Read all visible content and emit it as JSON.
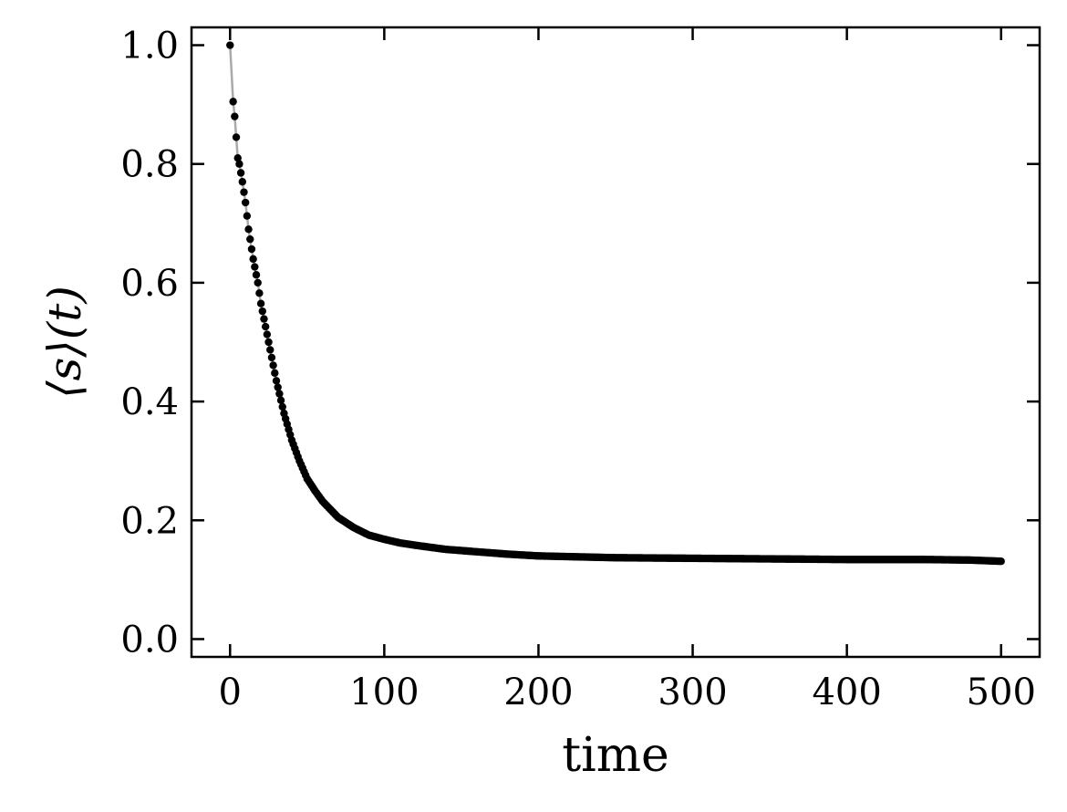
{
  "chart_data": {
    "type": "scatter",
    "xlabel": "time",
    "ylabel": "⟨s⟩(t)",
    "xlim": [
      -25,
      525
    ],
    "ylim": [
      -0.03,
      1.03
    ],
    "x_ticks": [
      0,
      100,
      200,
      300,
      400,
      500
    ],
    "y_ticks": [
      0.0,
      0.2,
      0.4,
      0.6,
      0.8,
      1.0
    ],
    "x_tick_labels": [
      "0",
      "100",
      "200",
      "300",
      "400",
      "500"
    ],
    "y_tick_labels": [
      "0.0",
      "0.2",
      "0.4",
      "0.6",
      "0.8",
      "1.0"
    ],
    "grid": false,
    "ticks_direction": "in",
    "ticks_on_all_sides": true,
    "colors": {
      "points": "#000000",
      "line": "#aaaaaa",
      "axes": "#000000"
    },
    "series": [
      {
        "x": [
          0,
          2,
          3,
          4,
          5,
          6,
          8,
          10,
          12,
          15,
          18,
          20,
          25,
          30,
          35,
          40,
          45,
          50,
          55,
          60,
          70,
          80,
          90,
          100,
          110,
          120,
          140,
          160,
          180,
          200,
          250,
          300,
          350,
          400,
          450,
          480,
          500
        ],
        "y": [
          1.0,
          0.905,
          0.88,
          0.845,
          0.81,
          0.8,
          0.77,
          0.735,
          0.69,
          0.64,
          0.6,
          0.565,
          0.5,
          0.435,
          0.38,
          0.335,
          0.3,
          0.27,
          0.25,
          0.232,
          0.205,
          0.188,
          0.175,
          0.168,
          0.162,
          0.158,
          0.151,
          0.147,
          0.143,
          0.14,
          0.137,
          0.136,
          0.135,
          0.134,
          0.134,
          0.133,
          0.131
        ]
      }
    ]
  }
}
